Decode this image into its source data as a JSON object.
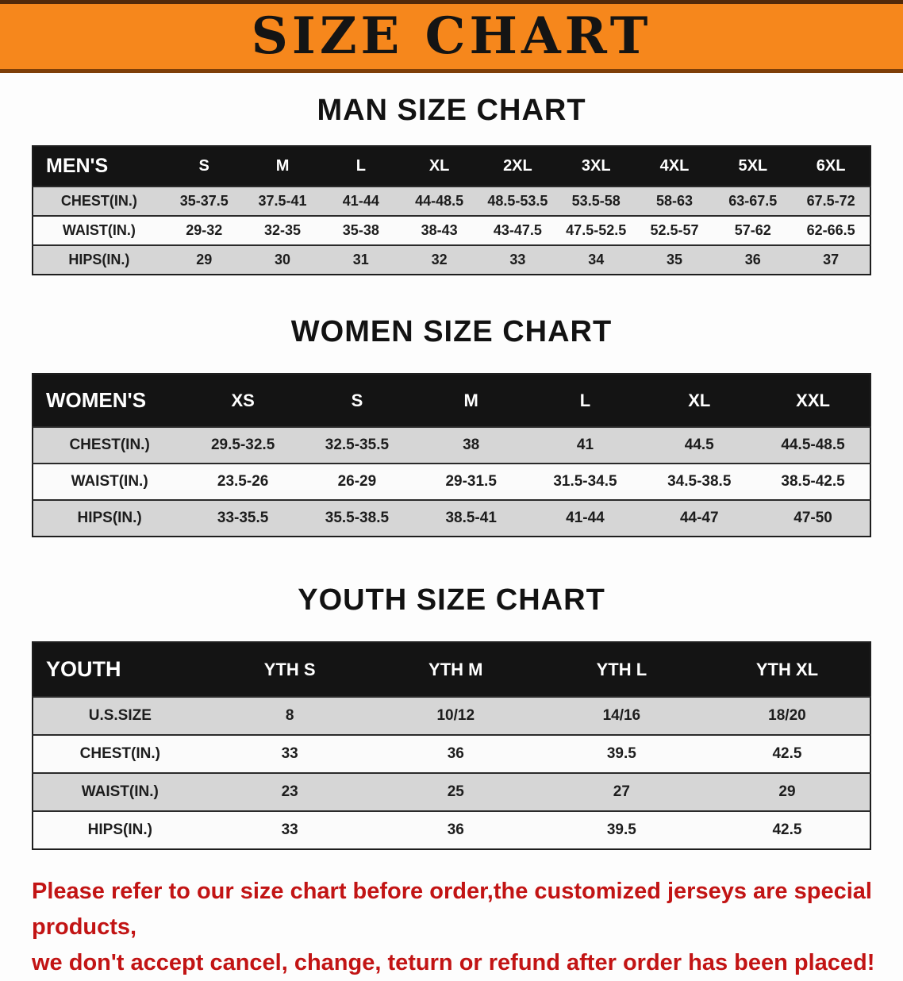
{
  "banner": {
    "title": "SIZE CHART"
  },
  "tables": {
    "men": {
      "heading": "MAN SIZE CHART",
      "header": [
        "MEN'S",
        "S",
        "M",
        "L",
        "XL",
        "2XL",
        "3XL",
        "4XL",
        "5XL",
        "6XL"
      ],
      "rows": [
        [
          "CHEST(IN.)",
          "35-37.5",
          "37.5-41",
          "41-44",
          "44-48.5",
          "48.5-53.5",
          "53.5-58",
          "58-63",
          "63-67.5",
          "67.5-72"
        ],
        [
          "WAIST(IN.)",
          "29-32",
          "32-35",
          "35-38",
          "38-43",
          "43-47.5",
          "47.5-52.5",
          "52.5-57",
          "57-62",
          "62-66.5"
        ],
        [
          "HIPS(IN.)",
          "29",
          "30",
          "31",
          "32",
          "33",
          "34",
          "35",
          "36",
          "37"
        ]
      ]
    },
    "women": {
      "heading": "WOMEN SIZE CHART",
      "header": [
        "WOMEN'S",
        "XS",
        "S",
        "M",
        "L",
        "XL",
        "XXL"
      ],
      "rows": [
        [
          "CHEST(IN.)",
          "29.5-32.5",
          "32.5-35.5",
          "38",
          "41",
          "44.5",
          "44.5-48.5"
        ],
        [
          "WAIST(IN.)",
          "23.5-26",
          "26-29",
          "29-31.5",
          "31.5-34.5",
          "34.5-38.5",
          "38.5-42.5"
        ],
        [
          "HIPS(IN.)",
          "33-35.5",
          "35.5-38.5",
          "38.5-41",
          "41-44",
          "44-47",
          "47-50"
        ]
      ]
    },
    "youth": {
      "heading": "YOUTH SIZE CHART",
      "header": [
        "YOUTH",
        "YTH S",
        "YTH M",
        "YTH L",
        "YTH XL"
      ],
      "rows": [
        [
          "U.S.SIZE",
          "8",
          "10/12",
          "14/16",
          "18/20"
        ],
        [
          "CHEST(IN.)",
          "33",
          "36",
          "39.5",
          "42.5"
        ],
        [
          "WAIST(IN.)",
          "23",
          "25",
          "27",
          "29"
        ],
        [
          "HIPS(IN.)",
          "33",
          "36",
          "39.5",
          "42.5"
        ]
      ]
    }
  },
  "disclaimer": {
    "line1": "Please refer to our size chart before order,the customized jerseys are special products,",
    "line2": "we don't accept cancel, change, teturn or refund after order has been placed!"
  },
  "colors": {
    "banner_bg": "#f6871c",
    "banner_border": "#5a2d05",
    "header_bar_bg": "#141414",
    "header_bar_text": "#ffffff",
    "stripe_row_bg": "#d6d6d6",
    "disclaimer_text": "#c21414"
  }
}
